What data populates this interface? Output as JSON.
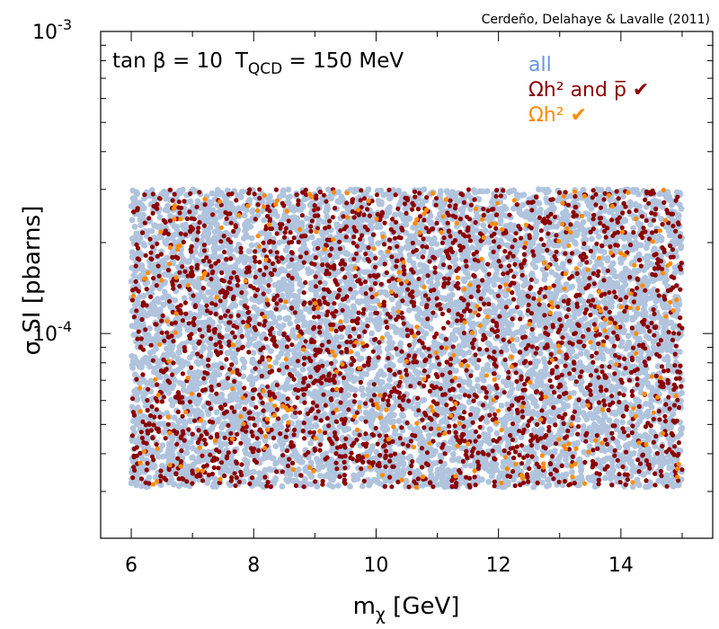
{
  "credit": "Cerdeño, Delahaye & Lavalle (2011)",
  "params": {
    "tan_label": "tan β = 10",
    "t_base": "T",
    "t_sub": "QCD",
    "t_value": " = 150 MeV"
  },
  "legend": {
    "all": "all",
    "omega_pbar": "Ωh² and p̅ ✔",
    "omega": "Ωh² ✔"
  },
  "colors": {
    "all": "#b0c4de",
    "omega_pbar": "#8b0000",
    "omega": "#ff8c00",
    "legend_all": "#6495ed"
  },
  "chart_data": {
    "type": "scatter",
    "title": "",
    "xlabel_base": "m",
    "xlabel_sub": "χ",
    "xlabel_unit": " [GeV]",
    "ylabel": "σ SI [pbarns]",
    "xlim": [
      5.5,
      15.5
    ],
    "ylim": [
      2.1e-05,
      0.001
    ],
    "yscale": "log",
    "x_ticks": [
      "6",
      "8",
      "10",
      "12",
      "14"
    ],
    "x_tick_values": [
      6,
      8,
      10,
      12,
      14
    ],
    "y_tick_labels": [
      {
        "base": "10",
        "exp": "-4",
        "value": 0.0001
      },
      {
        "base": "10",
        "exp": "-3",
        "value": 0.001
      }
    ],
    "populated_region": {
      "x": [
        6.0,
        15.0
      ],
      "y": [
        3.1e-05,
        0.0003
      ]
    },
    "series": [
      {
        "name": "all",
        "color": "#b0c4de",
        "density": 7000
      },
      {
        "name": "Ωh² and p̅ ✔",
        "color": "#8b0000",
        "density": 2300
      },
      {
        "name": "Ωh² ✔",
        "color": "#ff8c00",
        "density": 330
      }
    ]
  }
}
